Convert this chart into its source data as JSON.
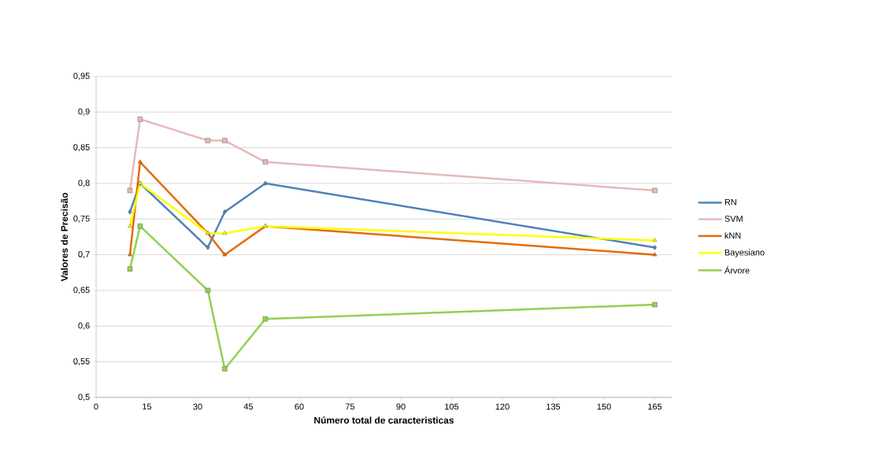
{
  "chart_data": {
    "type": "line",
    "xlabel": "Número total de caracteristicas",
    "ylabel": "Valores de Precisão",
    "x": [
      10,
      13,
      33,
      38,
      50,
      165
    ],
    "series": [
      {
        "name": "RN",
        "color": "#4f81bd",
        "marker": "diamond",
        "values": [
          0.76,
          0.8,
          0.71,
          0.76,
          0.8,
          0.71
        ]
      },
      {
        "name": "SVM",
        "color": "#e6b9b8",
        "marker": "square",
        "values": [
          0.79,
          0.89,
          0.86,
          0.86,
          0.83,
          0.79
        ]
      },
      {
        "name": "kNN",
        "color": "#e36c09",
        "marker": "triangle",
        "values": [
          0.7,
          0.83,
          0.73,
          0.7,
          0.74,
          0.7
        ]
      },
      {
        "name": "Bayesiano",
        "color": "#ffff00",
        "marker": "triangle",
        "values": [
          0.74,
          0.8,
          0.73,
          0.73,
          0.74,
          0.72
        ]
      },
      {
        "name": "Árvore",
        "color": "#92d050",
        "marker": "square",
        "values": [
          0.68,
          0.74,
          0.65,
          0.54,
          0.61,
          0.63
        ]
      }
    ],
    "xlim": [
      0,
      170
    ],
    "xticks": [
      0,
      15,
      30,
      45,
      60,
      75,
      90,
      105,
      120,
      135,
      150,
      165
    ],
    "ylim": [
      0.5,
      0.95
    ],
    "yticks": [
      {
        "value": 0.5,
        "label": "0,5"
      },
      {
        "value": 0.55,
        "label": "0,55"
      },
      {
        "value": 0.6,
        "label": "0,6"
      },
      {
        "value": 0.65,
        "label": "0,65"
      },
      {
        "value": 0.7,
        "label": "0,7"
      },
      {
        "value": 0.75,
        "label": "0,75"
      },
      {
        "value": 0.8,
        "label": "0,8"
      },
      {
        "value": 0.85,
        "label": "0,85"
      },
      {
        "value": 0.9,
        "label": "0,9"
      },
      {
        "value": 0.95,
        "label": "0,95"
      }
    ],
    "grid": "y",
    "legend": "right",
    "line_style": "solid"
  }
}
